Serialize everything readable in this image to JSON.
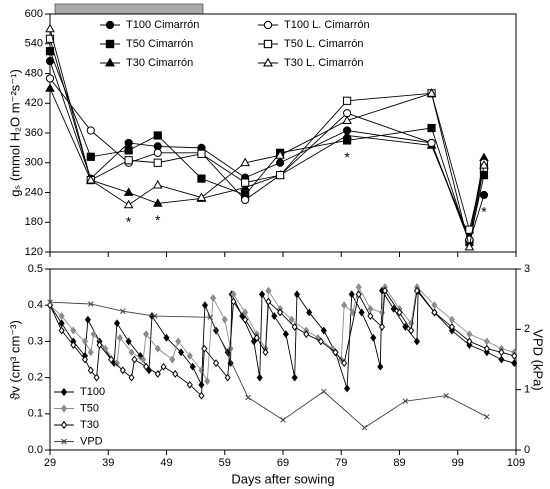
{
  "chart_data": [
    {
      "type": "line",
      "ylabel": "gₛ (mmol H₂O m⁻²s⁻¹)",
      "x": [
        29,
        36,
        42.5,
        47.5,
        55,
        62.5,
        68.5,
        80,
        94.5,
        101,
        103.5
      ],
      "xlim": [
        29,
        109
      ],
      "xticks": [
        29,
        39,
        49,
        59,
        69,
        79,
        89,
        99,
        109
      ],
      "show_xtick_labels": false,
      "ylim": [
        120,
        600
      ],
      "yticks": [
        120,
        180,
        240,
        300,
        360,
        420,
        480,
        540,
        600
      ],
      "series": [
        {
          "name": "T100 Cimarrón",
          "color": "#000000",
          "marker": "circle",
          "filled": true,
          "values": [
            505,
            268,
            340,
            333,
            330,
            270,
            300,
            365,
            340,
            140,
            235
          ]
        },
        {
          "name": "T50 Cimarrón",
          "color": "#000000",
          "marker": "square",
          "filled": true,
          "values": [
            525,
            312,
            325,
            355,
            268,
            235,
            320,
            345,
            370,
            140,
            275
          ]
        },
        {
          "name": "T30 Cimarrón",
          "color": "#000000",
          "marker": "triangle",
          "filled": true,
          "values": [
            450,
            265,
            240,
            218,
            228,
            250,
            275,
            355,
            335,
            150,
            310
          ]
        },
        {
          "name": "T100 L. Cimarrón",
          "color": "#000000",
          "marker": "circle",
          "filled": false,
          "values": [
            470,
            365,
            300,
            320,
            320,
            225,
            275,
            400,
            340,
            145,
            300
          ]
        },
        {
          "name": "T50 L. Cimarrón",
          "color": "#000000",
          "marker": "square",
          "filled": false,
          "values": [
            550,
            265,
            305,
            300,
            318,
            260,
            275,
            425,
            440,
            165,
            290
          ]
        },
        {
          "name": "T30 L. Cimarrón",
          "color": "#000000",
          "marker": "triangle",
          "filled": false,
          "values": [
            570,
            265,
            215,
            255,
            230,
            300,
            315,
            385,
            440,
            130,
            295
          ]
        }
      ],
      "annotations": [
        {
          "x": 42.5,
          "text": "*"
        },
        {
          "x": 47.5,
          "text": "*"
        },
        {
          "x": 80,
          "text": "*"
        },
        {
          "x": 103.5,
          "text": "*"
        }
      ]
    },
    {
      "type": "line",
      "xlabel": "Days after sowing",
      "ylabel": "ϑv (cm³ cm⁻³)",
      "y2label": "VPD (kPa)",
      "xlim": [
        29,
        109
      ],
      "xticks": [
        29,
        39,
        49,
        59,
        69,
        79,
        89,
        99,
        109
      ],
      "show_xtick_labels": true,
      "ylim": [
        0,
        0.5
      ],
      "yticks": [
        {
          "value": 0,
          "label": "0.0"
        },
        0.1,
        0.2,
        0.3,
        0.4,
        0.5
      ],
      "y2lim": [
        0,
        3
      ],
      "y2ticks": [
        0,
        1,
        2,
        3
      ],
      "series": [
        {
          "name": "T100",
          "color": "#000000",
          "marker": "diamond",
          "filled": true,
          "x": [
            29,
            31,
            33,
            35,
            35.5,
            37.5,
            40,
            40.5,
            42.5,
            44.5,
            46,
            46.5,
            49,
            51.5,
            53.5,
            55,
            55.6,
            57.5,
            59.5,
            60,
            60.2,
            62,
            64,
            65,
            65.4,
            67.5,
            69.5,
            71,
            71.4,
            73.5,
            76,
            78,
            80,
            80.8,
            82.5,
            84.5,
            85.7,
            86,
            88,
            90,
            92,
            92.2,
            95,
            98,
            101,
            104,
            106.5,
            108.7
          ],
          "values": [
            0.4,
            0.35,
            0.3,
            0.26,
            0.36,
            0.3,
            0.24,
            0.35,
            0.3,
            0.26,
            0.22,
            0.37,
            0.31,
            0.27,
            0.23,
            0.18,
            0.4,
            0.33,
            0.27,
            0.24,
            0.43,
            0.37,
            0.3,
            0.2,
            0.43,
            0.37,
            0.32,
            0.2,
            0.43,
            0.38,
            0.33,
            0.27,
            0.17,
            0.43,
            0.38,
            0.31,
            0.23,
            0.44,
            0.39,
            0.34,
            0.3,
            0.44,
            0.38,
            0.33,
            0.29,
            0.27,
            0.25,
            0.24
          ]
        },
        {
          "name": "T50",
          "color": "#8c8c8c",
          "marker": "diamond",
          "filled": true,
          "x": [
            29,
            31,
            33,
            35,
            36,
            36.5,
            38.5,
            40.5,
            41,
            43,
            45,
            45.5,
            47.5,
            50,
            51,
            53,
            55,
            56,
            57,
            59,
            60,
            60.5,
            62.5,
            64.5,
            66,
            66.5,
            68.5,
            70.5,
            73,
            75,
            77.5,
            79,
            79.5,
            81,
            82,
            84,
            86,
            86.5,
            89,
            91,
            92,
            95,
            98,
            101,
            104,
            106.5,
            108.7
          ],
          "values": [
            0.4,
            0.37,
            0.33,
            0.3,
            0.27,
            0.32,
            0.28,
            0.24,
            0.31,
            0.27,
            0.25,
            0.32,
            0.28,
            0.25,
            0.3,
            0.26,
            0.22,
            0.19,
            0.42,
            0.36,
            0.28,
            0.43,
            0.38,
            0.32,
            0.28,
            0.44,
            0.39,
            0.36,
            0.33,
            0.31,
            0.28,
            0.25,
            0.4,
            0.38,
            0.45,
            0.39,
            0.38,
            0.45,
            0.39,
            0.35,
            0.45,
            0.4,
            0.36,
            0.32,
            0.3,
            0.28,
            0.27
          ]
        },
        {
          "name": "T30",
          "color": "#000000",
          "marker": "diamond",
          "filled": false,
          "x": [
            29,
            31,
            33,
            35,
            36,
            37,
            37.5,
            39.5,
            41.5,
            43,
            43.5,
            45.5,
            47.5,
            48.5,
            50.5,
            53,
            55,
            55.5,
            57.5,
            59.5,
            60.5,
            62.5,
            64.5,
            66,
            66.5,
            68.5,
            71,
            73,
            75.5,
            78,
            79.5,
            82,
            84,
            86,
            86.5,
            89,
            91,
            92,
            95,
            98,
            101,
            104,
            106.5,
            108.7
          ],
          "values": [
            0.4,
            0.33,
            0.29,
            0.25,
            0.22,
            0.2,
            0.29,
            0.25,
            0.22,
            0.2,
            0.25,
            0.23,
            0.21,
            0.23,
            0.21,
            0.18,
            0.15,
            0.28,
            0.24,
            0.2,
            0.41,
            0.36,
            0.31,
            0.27,
            0.41,
            0.38,
            0.34,
            0.32,
            0.3,
            0.27,
            0.24,
            0.43,
            0.37,
            0.34,
            0.44,
            0.38,
            0.33,
            0.44,
            0.38,
            0.34,
            0.3,
            0.28,
            0.27,
            0.26
          ]
        },
        {
          "name": "VPD",
          "color": "#444444",
          "marker": "x",
          "filled": false,
          "axis": "y2",
          "x": [
            29,
            36,
            41.5,
            47,
            56.5,
            63,
            69,
            76,
            83,
            90,
            97,
            104
          ],
          "values": [
            2.45,
            2.42,
            2.3,
            2.22,
            2.2,
            0.87,
            0.5,
            0.97,
            0.37,
            0.81,
            0.9,
            0.55
          ]
        }
      ]
    }
  ]
}
